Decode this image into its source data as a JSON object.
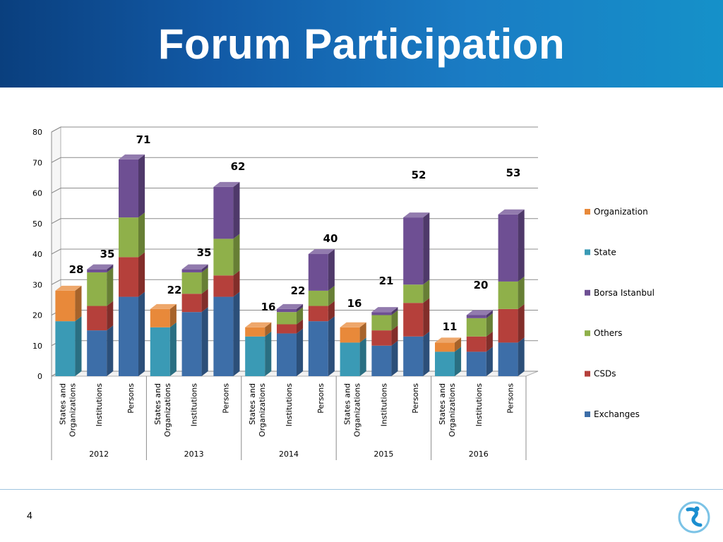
{
  "slide": {
    "title": "Forum Participation",
    "page_number": "4",
    "logo_icon": "borsa-istanbul-logo-icon"
  },
  "colors": {
    "header_left": "#0a3f7e",
    "header_right": "#1591c9",
    "Exchanges": "#3d6ea8",
    "CSDs": "#b5403b",
    "Others": "#8fb04a",
    "Borsa Istanbul": "#6e4f93",
    "State": "#3a9ab5",
    "Organization": "#e8893a"
  },
  "chart_data": {
    "type": "bar",
    "stacked": true,
    "style": "3d",
    "title": "",
    "xlabel": "",
    "ylabel": "",
    "ylim": [
      0,
      80
    ],
    "yticks": [
      0,
      10,
      20,
      30,
      40,
      50,
      60,
      70,
      80
    ],
    "grid": true,
    "legend_position": "right",
    "legend": [
      "Organization",
      "State",
      "Borsa Istanbul",
      "Others",
      "CSDs",
      "Exchanges"
    ],
    "groups": [
      "2012",
      "2013",
      "2014",
      "2015",
      "2016"
    ],
    "categories": [
      {
        "group": "2012",
        "label": "States and Organizations",
        "lines": [
          "States and",
          "Organizations"
        ]
      },
      {
        "group": "2012",
        "label": "Institutions",
        "lines": [
          "Institutions"
        ]
      },
      {
        "group": "2012",
        "label": "Persons",
        "lines": [
          "Persons"
        ]
      },
      {
        "group": "2013",
        "label": "States and Organizations",
        "lines": [
          "States and",
          "Organizations"
        ]
      },
      {
        "group": "2013",
        "label": "Institutions",
        "lines": [
          "Institutions"
        ]
      },
      {
        "group": "2013",
        "label": "Persons",
        "lines": [
          "Persons"
        ]
      },
      {
        "group": "2014",
        "label": "States and Organizations",
        "lines": [
          "States and",
          "Organizations"
        ]
      },
      {
        "group": "2014",
        "label": "Institutions",
        "lines": [
          "Institutions"
        ]
      },
      {
        "group": "2014",
        "label": "Persons",
        "lines": [
          "Persons"
        ]
      },
      {
        "group": "2015",
        "label": "States and Organizations",
        "lines": [
          "States and",
          "Organizations"
        ]
      },
      {
        "group": "2015",
        "label": "Institutions",
        "lines": [
          "Institutions"
        ]
      },
      {
        "group": "2015",
        "label": "Persons",
        "lines": [
          "Persons"
        ]
      },
      {
        "group": "2016",
        "label": "States and Organizations",
        "lines": [
          "States and",
          "Organizations"
        ]
      },
      {
        "group": "2016",
        "label": "Institutions",
        "lines": [
          "Institutions"
        ]
      },
      {
        "group": "2016",
        "label": "Persons",
        "lines": [
          "Persons"
        ]
      }
    ],
    "series": [
      {
        "name": "Exchanges",
        "values": [
          0,
          15,
          26,
          0,
          21,
          26,
          0,
          14,
          18,
          0,
          10,
          13,
          0,
          8,
          11
        ]
      },
      {
        "name": "CSDs",
        "values": [
          0,
          8,
          13,
          0,
          6,
          7,
          0,
          3,
          5,
          0,
          5,
          11,
          0,
          5,
          11
        ]
      },
      {
        "name": "Others",
        "values": [
          0,
          11,
          13,
          0,
          7,
          12,
          0,
          4,
          5,
          0,
          5,
          6,
          0,
          6,
          9
        ]
      },
      {
        "name": "Borsa Istanbul",
        "values": [
          0,
          1,
          19,
          0,
          1,
          17,
          0,
          1,
          12,
          0,
          1,
          22,
          0,
          1,
          22
        ]
      },
      {
        "name": "State",
        "values": [
          18,
          0,
          0,
          16,
          0,
          0,
          13,
          0,
          0,
          11,
          0,
          0,
          8,
          0,
          0
        ]
      },
      {
        "name": "Organization",
        "values": [
          10,
          0,
          0,
          6,
          0,
          0,
          3,
          0,
          0,
          5,
          0,
          0,
          3,
          0,
          0
        ]
      }
    ],
    "totals": [
      28,
      35,
      71,
      22,
      35,
      62,
      16,
      22,
      40,
      16,
      21,
      52,
      11,
      20,
      53
    ]
  }
}
